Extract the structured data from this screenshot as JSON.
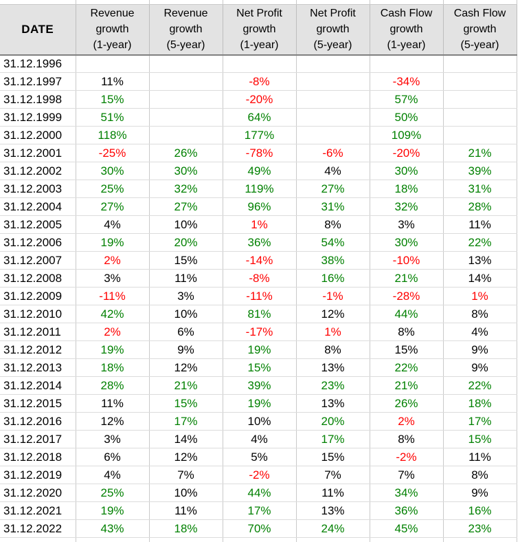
{
  "colors": {
    "pos": "#008000",
    "neg": "#FF0000",
    "flat": "#000000",
    "header_bg": "#E3E3E3",
    "grid_vertical": "#C9C9C9",
    "grid_horizontal": "#DCDCDC",
    "header_underline": "#808080"
  },
  "table": {
    "date_header": "DATE",
    "columns": [
      "Revenue\ngrowth\n(1-year)",
      "Revenue\ngrowth\n(5-year)",
      "Net Profit\ngrowth\n(1-year)",
      "Net Profit\ngrowth\n(5-year)",
      "Cash Flow\ngrowth\n(1-year)",
      "Cash Flow\ngrowth\n(5-year)"
    ],
    "rows": [
      {
        "date": "31.12.1996",
        "cells": [
          [
            "",
            "empty"
          ],
          [
            "",
            "empty"
          ],
          [
            "",
            "empty"
          ],
          [
            "",
            "empty"
          ],
          [
            "",
            "empty"
          ],
          [
            "",
            "empty"
          ]
        ]
      },
      {
        "date": "31.12.1997",
        "cells": [
          [
            "11%",
            "flat"
          ],
          [
            "",
            "empty"
          ],
          [
            "-8%",
            "neg"
          ],
          [
            "",
            "empty"
          ],
          [
            "-34%",
            "neg"
          ],
          [
            "",
            "empty"
          ]
        ]
      },
      {
        "date": "31.12.1998",
        "cells": [
          [
            "15%",
            "pos"
          ],
          [
            "",
            "empty"
          ],
          [
            "-20%",
            "neg"
          ],
          [
            "",
            "empty"
          ],
          [
            "57%",
            "pos"
          ],
          [
            "",
            "empty"
          ]
        ]
      },
      {
        "date": "31.12.1999",
        "cells": [
          [
            "51%",
            "pos"
          ],
          [
            "",
            "empty"
          ],
          [
            "64%",
            "pos"
          ],
          [
            "",
            "empty"
          ],
          [
            "50%",
            "pos"
          ],
          [
            "",
            "empty"
          ]
        ]
      },
      {
        "date": "31.12.2000",
        "cells": [
          [
            "118%",
            "pos"
          ],
          [
            "",
            "empty"
          ],
          [
            "177%",
            "pos"
          ],
          [
            "",
            "empty"
          ],
          [
            "109%",
            "pos"
          ],
          [
            "",
            "empty"
          ]
        ]
      },
      {
        "date": "31.12.2001",
        "cells": [
          [
            "-25%",
            "neg"
          ],
          [
            "26%",
            "pos"
          ],
          [
            "-78%",
            "neg"
          ],
          [
            "-6%",
            "neg"
          ],
          [
            "-20%",
            "neg"
          ],
          [
            "21%",
            "pos"
          ]
        ]
      },
      {
        "date": "31.12.2002",
        "cells": [
          [
            "30%",
            "pos"
          ],
          [
            "30%",
            "pos"
          ],
          [
            "49%",
            "pos"
          ],
          [
            "4%",
            "flat"
          ],
          [
            "30%",
            "pos"
          ],
          [
            "39%",
            "pos"
          ]
        ]
      },
      {
        "date": "31.12.2003",
        "cells": [
          [
            "25%",
            "pos"
          ],
          [
            "32%",
            "pos"
          ],
          [
            "119%",
            "pos"
          ],
          [
            "27%",
            "pos"
          ],
          [
            "18%",
            "pos"
          ],
          [
            "31%",
            "pos"
          ]
        ]
      },
      {
        "date": "31.12.2004",
        "cells": [
          [
            "27%",
            "pos"
          ],
          [
            "27%",
            "pos"
          ],
          [
            "96%",
            "pos"
          ],
          [
            "31%",
            "pos"
          ],
          [
            "32%",
            "pos"
          ],
          [
            "28%",
            "pos"
          ]
        ]
      },
      {
        "date": "31.12.2005",
        "cells": [
          [
            "4%",
            "flat"
          ],
          [
            "10%",
            "flat"
          ],
          [
            "1%",
            "neg"
          ],
          [
            "8%",
            "flat"
          ],
          [
            "3%",
            "flat"
          ],
          [
            "11%",
            "flat"
          ]
        ]
      },
      {
        "date": "31.12.2006",
        "cells": [
          [
            "19%",
            "pos"
          ],
          [
            "20%",
            "pos"
          ],
          [
            "36%",
            "pos"
          ],
          [
            "54%",
            "pos"
          ],
          [
            "30%",
            "pos"
          ],
          [
            "22%",
            "pos"
          ]
        ]
      },
      {
        "date": "31.12.2007",
        "cells": [
          [
            "2%",
            "neg"
          ],
          [
            "15%",
            "flat"
          ],
          [
            "-14%",
            "neg"
          ],
          [
            "38%",
            "pos"
          ],
          [
            "-10%",
            "neg"
          ],
          [
            "13%",
            "flat"
          ]
        ]
      },
      {
        "date": "31.12.2008",
        "cells": [
          [
            "3%",
            "flat"
          ],
          [
            "11%",
            "flat"
          ],
          [
            "-8%",
            "neg"
          ],
          [
            "16%",
            "pos"
          ],
          [
            "21%",
            "pos"
          ],
          [
            "14%",
            "flat"
          ]
        ]
      },
      {
        "date": "31.12.2009",
        "cells": [
          [
            "-11%",
            "neg"
          ],
          [
            "3%",
            "flat"
          ],
          [
            "-11%",
            "neg"
          ],
          [
            "-1%",
            "neg"
          ],
          [
            "-28%",
            "neg"
          ],
          [
            "1%",
            "neg"
          ]
        ]
      },
      {
        "date": "31.12.2010",
        "cells": [
          [
            "42%",
            "pos"
          ],
          [
            "10%",
            "flat"
          ],
          [
            "81%",
            "pos"
          ],
          [
            "12%",
            "flat"
          ],
          [
            "44%",
            "pos"
          ],
          [
            "8%",
            "flat"
          ]
        ]
      },
      {
        "date": "31.12.2011",
        "cells": [
          [
            "2%",
            "neg"
          ],
          [
            "6%",
            "flat"
          ],
          [
            "-17%",
            "neg"
          ],
          [
            "1%",
            "neg"
          ],
          [
            "8%",
            "flat"
          ],
          [
            "4%",
            "flat"
          ]
        ]
      },
      {
        "date": "31.12.2012",
        "cells": [
          [
            "19%",
            "pos"
          ],
          [
            "9%",
            "flat"
          ],
          [
            "19%",
            "pos"
          ],
          [
            "8%",
            "flat"
          ],
          [
            "15%",
            "flat"
          ],
          [
            "9%",
            "flat"
          ]
        ]
      },
      {
        "date": "31.12.2013",
        "cells": [
          [
            "18%",
            "pos"
          ],
          [
            "12%",
            "flat"
          ],
          [
            "15%",
            "pos"
          ],
          [
            "13%",
            "flat"
          ],
          [
            "22%",
            "pos"
          ],
          [
            "9%",
            "flat"
          ]
        ]
      },
      {
        "date": "31.12.2014",
        "cells": [
          [
            "28%",
            "pos"
          ],
          [
            "21%",
            "pos"
          ],
          [
            "39%",
            "pos"
          ],
          [
            "23%",
            "pos"
          ],
          [
            "21%",
            "pos"
          ],
          [
            "22%",
            "pos"
          ]
        ]
      },
      {
        "date": "31.12.2015",
        "cells": [
          [
            "11%",
            "flat"
          ],
          [
            "15%",
            "pos"
          ],
          [
            "19%",
            "pos"
          ],
          [
            "13%",
            "flat"
          ],
          [
            "26%",
            "pos"
          ],
          [
            "18%",
            "pos"
          ]
        ]
      },
      {
        "date": "31.12.2016",
        "cells": [
          [
            "12%",
            "flat"
          ],
          [
            "17%",
            "pos"
          ],
          [
            "10%",
            "flat"
          ],
          [
            "20%",
            "pos"
          ],
          [
            "2%",
            "neg"
          ],
          [
            "17%",
            "pos"
          ]
        ]
      },
      {
        "date": "31.12.2017",
        "cells": [
          [
            "3%",
            "flat"
          ],
          [
            "14%",
            "flat"
          ],
          [
            "4%",
            "flat"
          ],
          [
            "17%",
            "pos"
          ],
          [
            "8%",
            "flat"
          ],
          [
            "15%",
            "pos"
          ]
        ]
      },
      {
        "date": "31.12.2018",
        "cells": [
          [
            "6%",
            "flat"
          ],
          [
            "12%",
            "flat"
          ],
          [
            "5%",
            "flat"
          ],
          [
            "15%",
            "flat"
          ],
          [
            "-2%",
            "neg"
          ],
          [
            "11%",
            "flat"
          ]
        ]
      },
      {
        "date": "31.12.2019",
        "cells": [
          [
            "4%",
            "flat"
          ],
          [
            "7%",
            "flat"
          ],
          [
            "-2%",
            "neg"
          ],
          [
            "7%",
            "flat"
          ],
          [
            "7%",
            "flat"
          ],
          [
            "8%",
            "flat"
          ]
        ]
      },
      {
        "date": "31.12.2020",
        "cells": [
          [
            "25%",
            "pos"
          ],
          [
            "10%",
            "flat"
          ],
          [
            "44%",
            "pos"
          ],
          [
            "11%",
            "flat"
          ],
          [
            "34%",
            "pos"
          ],
          [
            "9%",
            "flat"
          ]
        ]
      },
      {
        "date": "31.12.2021",
        "cells": [
          [
            "19%",
            "pos"
          ],
          [
            "11%",
            "flat"
          ],
          [
            "17%",
            "pos"
          ],
          [
            "13%",
            "flat"
          ],
          [
            "36%",
            "pos"
          ],
          [
            "16%",
            "pos"
          ]
        ]
      },
      {
        "date": "31.12.2022",
        "cells": [
          [
            "43%",
            "pos"
          ],
          [
            "18%",
            "pos"
          ],
          [
            "70%",
            "pos"
          ],
          [
            "24%",
            "pos"
          ],
          [
            "45%",
            "pos"
          ],
          [
            "23%",
            "pos"
          ]
        ]
      }
    ]
  }
}
